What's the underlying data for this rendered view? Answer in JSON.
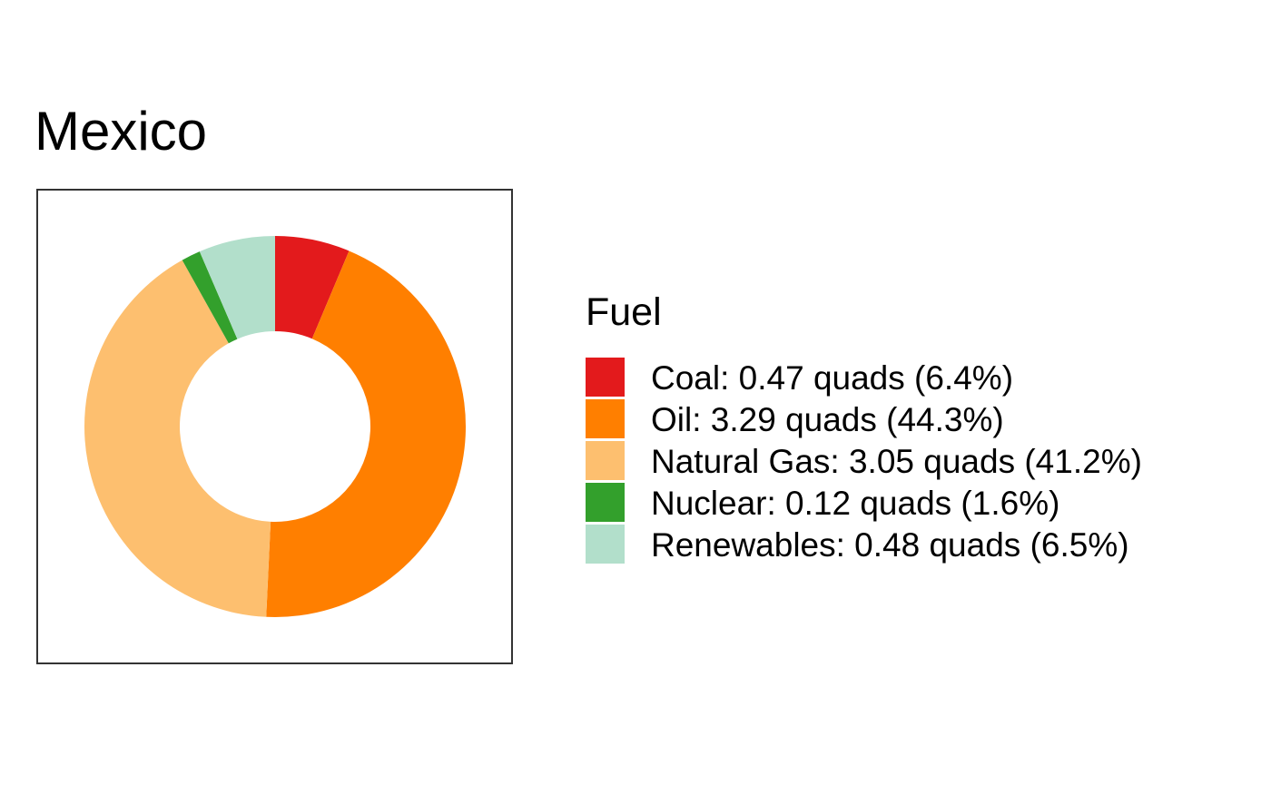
{
  "chart_data": {
    "type": "pie",
    "title": "Mexico",
    "legend_title": "Fuel",
    "legend_position": "right",
    "unit": "quads",
    "slices": [
      {
        "name": "Coal",
        "value": 0.47,
        "percent": 6.4,
        "color": "#e31a1c",
        "label": "Coal: 0.47 quads (6.4%)"
      },
      {
        "name": "Oil",
        "value": 3.29,
        "percent": 44.3,
        "color": "#ff7f00",
        "label": "Oil: 3.29 quads (44.3%)"
      },
      {
        "name": "Natural Gas",
        "value": 3.05,
        "percent": 41.2,
        "color": "#fdbf6f",
        "label": "Natural Gas: 3.05 quads (41.2%)"
      },
      {
        "name": "Nuclear",
        "value": 0.12,
        "percent": 1.6,
        "color": "#33a02c",
        "label": "Nuclear: 0.12 quads (1.6%)"
      },
      {
        "name": "Renewables",
        "value": 0.48,
        "percent": 6.5,
        "color": "#b2dfcb",
        "label": "Renewables: 0.48 quads (6.5%)"
      }
    ]
  }
}
